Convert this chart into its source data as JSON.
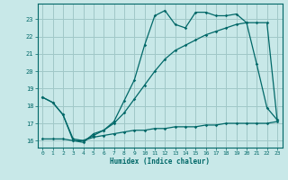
{
  "title": "",
  "xlabel": "Humidex (Indice chaleur)",
  "background_color": "#c8e8e8",
  "grid_color": "#a0c8c8",
  "line_color": "#006868",
  "x_values": [
    0,
    1,
    2,
    3,
    4,
    5,
    6,
    7,
    8,
    9,
    10,
    11,
    12,
    13,
    14,
    15,
    16,
    17,
    18,
    19,
    20,
    21,
    22,
    23
  ],
  "series1": [
    18.5,
    18.2,
    17.5,
    16.0,
    15.9,
    16.4,
    16.6,
    17.1,
    18.3,
    19.5,
    21.5,
    23.2,
    23.5,
    22.7,
    22.5,
    23.4,
    23.4,
    23.2,
    23.2,
    23.3,
    22.8,
    20.4,
    17.9,
    17.2
  ],
  "series2": [
    18.5,
    18.2,
    17.5,
    16.1,
    16.0,
    16.3,
    16.6,
    17.0,
    17.6,
    18.4,
    19.2,
    20.0,
    20.7,
    21.2,
    21.5,
    21.8,
    22.1,
    22.3,
    22.5,
    22.7,
    22.8,
    22.8,
    22.8,
    17.2
  ],
  "series3": [
    16.1,
    16.1,
    16.1,
    16.0,
    16.0,
    16.2,
    16.3,
    16.4,
    16.5,
    16.6,
    16.6,
    16.7,
    16.7,
    16.8,
    16.8,
    16.8,
    16.9,
    16.9,
    17.0,
    17.0,
    17.0,
    17.0,
    17.0,
    17.1
  ],
  "ylim": [
    15.6,
    23.9
  ],
  "yticks": [
    16,
    17,
    18,
    19,
    20,
    21,
    22,
    23
  ],
  "xlim": [
    -0.5,
    23.5
  ]
}
